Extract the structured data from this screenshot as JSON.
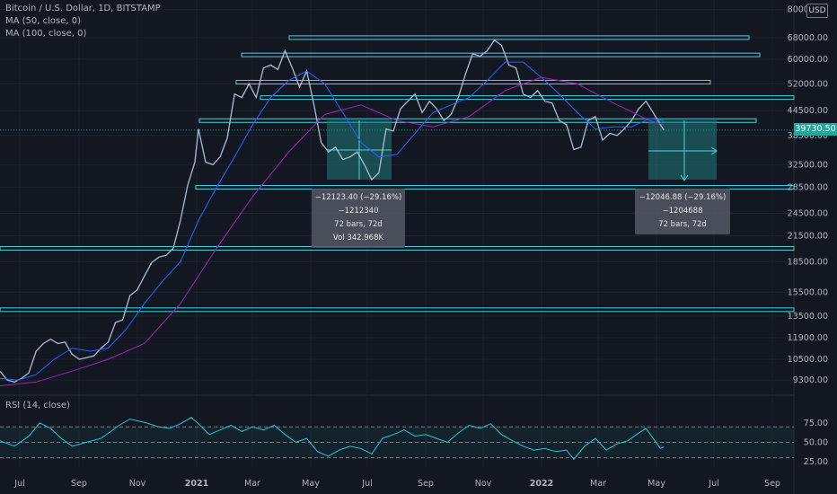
{
  "header": {
    "symbol_line": "Bitcoin / U.S. Dollar, 1D, BITSTAMP",
    "ma50_line": "MA (50, close, 0)",
    "ma100_line": "MA (100, close, 0)",
    "rsi_line": "RSI (14, close)",
    "currency": "USD"
  },
  "last_price_label": "39730.50",
  "measure_boxes": [
    {
      "line1": "−12123.40 (−29.16%) −1212340",
      "line2": "72 bars, 72d",
      "line3": "Vol 342.968K"
    },
    {
      "line1": "−12046.88 (−29.16%) −1204688",
      "line2": "72 bars, 72d"
    }
  ],
  "colors": {
    "background": "#131722",
    "price_line": "#a9bcd6",
    "ma50": "#2962ff",
    "ma100": "#9c27b0",
    "level_line": "#4dd0e1",
    "rsi": "#26c6da",
    "measure_fill": "#1f7a78"
  },
  "chart_data": {
    "type": "line",
    "x_ticks": [
      "Jul",
      "Sep",
      "Nov",
      "2021",
      "Mar",
      "May",
      "Jul",
      "Sep",
      "Nov",
      "2022",
      "Mar",
      "May",
      "Jul",
      "Sep"
    ],
    "y_axis": {
      "scale": "log",
      "ticks": [
        9300,
        10500,
        11900,
        13500,
        15500,
        18500,
        21500,
        24500,
        28500,
        32500,
        38500,
        44500,
        52000,
        60000,
        68000,
        80000
      ],
      "tick_labels": [
        "9300.00",
        "10500.00",
        "11900.00",
        "13500.00",
        "15500.00",
        "18500.00",
        "21500.00",
        "24500.00",
        "28500.00",
        "32500.00",
        "38500.00",
        "44500.00",
        "52000.00",
        "60000.00",
        "68000.00",
        "80000.00"
      ],
      "range": [
        8700,
        82000
      ]
    },
    "series": [
      {
        "name": "Bitcoin / U.S. Dollar",
        "points": [
          [
            0,
            9800
          ],
          [
            4,
            9300
          ],
          [
            8,
            9200
          ],
          [
            12,
            9400
          ],
          [
            16,
            9700
          ],
          [
            20,
            11000
          ],
          [
            24,
            11500
          ],
          [
            28,
            11800
          ],
          [
            32,
            11500
          ],
          [
            36,
            11600
          ],
          [
            40,
            10800
          ],
          [
            44,
            10500
          ],
          [
            48,
            10600
          ],
          [
            52,
            10700
          ],
          [
            56,
            11200
          ],
          [
            60,
            11600
          ],
          [
            64,
            13000
          ],
          [
            68,
            13200
          ],
          [
            72,
            15200
          ],
          [
            76,
            15700
          ],
          [
            80,
            17000
          ],
          [
            84,
            18400
          ],
          [
            88,
            19000
          ],
          [
            92,
            19200
          ],
          [
            96,
            20000
          ],
          [
            100,
            23500
          ],
          [
            104,
            28800
          ],
          [
            108,
            33000
          ],
          [
            110,
            40000
          ],
          [
            114,
            33000
          ],
          [
            118,
            32500
          ],
          [
            122,
            34000
          ],
          [
            126,
            38000
          ],
          [
            130,
            49000
          ],
          [
            134,
            48000
          ],
          [
            138,
            52000
          ],
          [
            142,
            48000
          ],
          [
            146,
            57000
          ],
          [
            150,
            58000
          ],
          [
            154,
            56500
          ],
          [
            158,
            63000
          ],
          [
            162,
            57000
          ],
          [
            166,
            51000
          ],
          [
            170,
            56000
          ],
          [
            174,
            46000
          ],
          [
            178,
            37000
          ],
          [
            182,
            35000
          ],
          [
            186,
            36000
          ],
          [
            190,
            33500
          ],
          [
            194,
            34000
          ],
          [
            198,
            35000
          ],
          [
            202,
            32500
          ],
          [
            206,
            29800
          ],
          [
            210,
            31000
          ],
          [
            214,
            40000
          ],
          [
            218,
            39500
          ],
          [
            222,
            45000
          ],
          [
            226,
            47000
          ],
          [
            230,
            49000
          ],
          [
            234,
            44000
          ],
          [
            238,
            47000
          ],
          [
            242,
            45000
          ],
          [
            246,
            42000
          ],
          [
            250,
            43500
          ],
          [
            254,
            48000
          ],
          [
            258,
            55000
          ],
          [
            262,
            62000
          ],
          [
            266,
            61000
          ],
          [
            270,
            63000
          ],
          [
            274,
            67000
          ],
          [
            278,
            65000
          ],
          [
            282,
            58000
          ],
          [
            286,
            57000
          ],
          [
            290,
            49000
          ],
          [
            294,
            48000
          ],
          [
            298,
            50000
          ],
          [
            302,
            47000
          ],
          [
            306,
            46500
          ],
          [
            310,
            42000
          ],
          [
            314,
            41000
          ],
          [
            318,
            35500
          ],
          [
            322,
            36000
          ],
          [
            326,
            42000
          ],
          [
            330,
            43000
          ],
          [
            334,
            37500
          ],
          [
            338,
            39000
          ],
          [
            342,
            38500
          ],
          [
            346,
            40000
          ],
          [
            350,
            42000
          ],
          [
            354,
            45000
          ],
          [
            358,
            47000
          ],
          [
            362,
            44000
          ],
          [
            366,
            41000
          ],
          [
            368,
            39730
          ]
        ]
      },
      {
        "name": "MA (50, close, 0)",
        "points": [
          [
            0,
            9400
          ],
          [
            10,
            9300
          ],
          [
            20,
            9600
          ],
          [
            30,
            10500
          ],
          [
            40,
            11200
          ],
          [
            50,
            11000
          ],
          [
            60,
            11200
          ],
          [
            70,
            12500
          ],
          [
            80,
            14500
          ],
          [
            90,
            16500
          ],
          [
            100,
            18500
          ],
          [
            110,
            23500
          ],
          [
            120,
            28500
          ],
          [
            130,
            34000
          ],
          [
            140,
            41000
          ],
          [
            150,
            48000
          ],
          [
            160,
            53000
          ],
          [
            170,
            56000
          ],
          [
            180,
            52000
          ],
          [
            190,
            44000
          ],
          [
            200,
            37000
          ],
          [
            210,
            34000
          ],
          [
            220,
            34500
          ],
          [
            230,
            39000
          ],
          [
            240,
            44000
          ],
          [
            250,
            46000
          ],
          [
            260,
            48000
          ],
          [
            270,
            53000
          ],
          [
            280,
            59000
          ],
          [
            290,
            59000
          ],
          [
            300,
            54000
          ],
          [
            310,
            49000
          ],
          [
            320,
            44000
          ],
          [
            330,
            40000
          ],
          [
            340,
            40500
          ],
          [
            350,
            40500
          ],
          [
            360,
            42500
          ],
          [
            368,
            42000
          ]
        ]
      },
      {
        "name": "MA (100, close, 0)",
        "points": [
          [
            0,
            9000
          ],
          [
            20,
            9200
          ],
          [
            40,
            9800
          ],
          [
            60,
            10500
          ],
          [
            80,
            11500
          ],
          [
            100,
            14500
          ],
          [
            120,
            20000
          ],
          [
            140,
            27000
          ],
          [
            160,
            35000
          ],
          [
            180,
            43500
          ],
          [
            200,
            46000
          ],
          [
            220,
            42000
          ],
          [
            240,
            40500
          ],
          [
            260,
            43000
          ],
          [
            280,
            50000
          ],
          [
            300,
            54000
          ],
          [
            320,
            52000
          ],
          [
            340,
            46500
          ],
          [
            360,
            42000
          ],
          [
            368,
            41000
          ]
        ]
      },
      {
        "name": "RSI (14, close)",
        "points": [
          [
            0,
            52
          ],
          [
            8,
            45
          ],
          [
            16,
            58
          ],
          [
            22,
            75
          ],
          [
            28,
            68
          ],
          [
            34,
            55
          ],
          [
            40,
            45
          ],
          [
            48,
            50
          ],
          [
            56,
            55
          ],
          [
            62,
            65
          ],
          [
            66,
            72
          ],
          [
            72,
            80
          ],
          [
            80,
            76
          ],
          [
            88,
            70
          ],
          [
            94,
            68
          ],
          [
            100,
            74
          ],
          [
            106,
            82
          ],
          [
            110,
            74
          ],
          [
            116,
            60
          ],
          [
            122,
            66
          ],
          [
            128,
            72
          ],
          [
            134,
            64
          ],
          [
            140,
            70
          ],
          [
            146,
            66
          ],
          [
            152,
            72
          ],
          [
            158,
            60
          ],
          [
            164,
            50
          ],
          [
            170,
            55
          ],
          [
            176,
            38
          ],
          [
            182,
            32
          ],
          [
            188,
            40
          ],
          [
            194,
            45
          ],
          [
            200,
            42
          ],
          [
            206,
            35
          ],
          [
            212,
            55
          ],
          [
            218,
            60
          ],
          [
            224,
            66
          ],
          [
            230,
            58
          ],
          [
            236,
            60
          ],
          [
            242,
            55
          ],
          [
            248,
            50
          ],
          [
            254,
            62
          ],
          [
            260,
            72
          ],
          [
            266,
            68
          ],
          [
            272,
            74
          ],
          [
            278,
            60
          ],
          [
            284,
            52
          ],
          [
            290,
            45
          ],
          [
            296,
            40
          ],
          [
            302,
            42
          ],
          [
            308,
            38
          ],
          [
            314,
            40
          ],
          [
            318,
            28
          ],
          [
            324,
            45
          ],
          [
            330,
            55
          ],
          [
            336,
            40
          ],
          [
            342,
            48
          ],
          [
            348,
            52
          ],
          [
            354,
            62
          ],
          [
            358,
            68
          ],
          [
            362,
            55
          ],
          [
            366,
            42
          ],
          [
            368,
            44
          ]
        ]
      }
    ],
    "rsi": {
      "levels": [
        70,
        50,
        30
      ],
      "tick_labels": [
        "75.00",
        "50.00",
        "25.00"
      ],
      "range": [
        18,
        90
      ]
    },
    "horizontal_levels": [
      68000,
      61500,
      52500,
      48000,
      42000,
      28500,
      20000,
      14000
    ],
    "x_range": [
      0,
      440
    ]
  }
}
